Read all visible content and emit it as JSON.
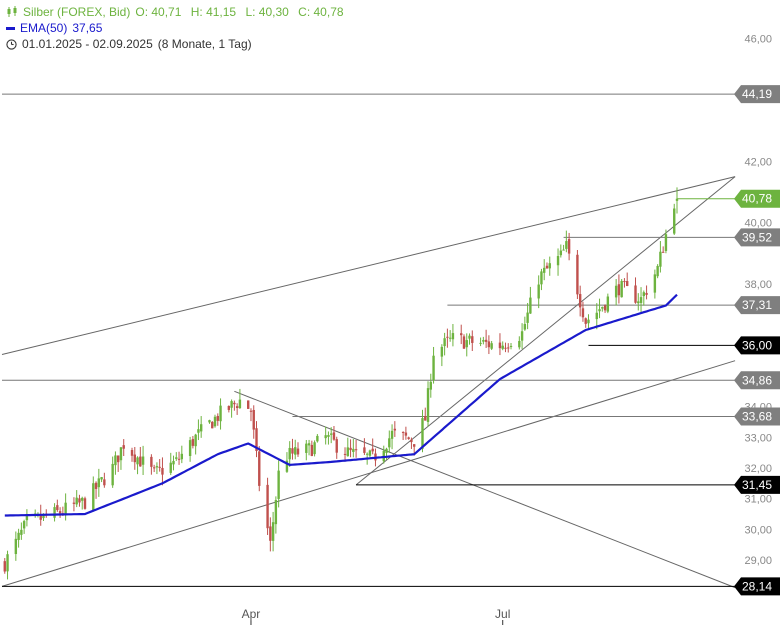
{
  "legend": {
    "instrument": "Silber (FOREX, Bid)",
    "open": "O: 40,71",
    "high": "H: 41,15",
    "low": "L: 40,30",
    "close": "C: 40,78",
    "ema_label": "EMA(50)",
    "ema_value": "37,65",
    "period": "01.01.2025 - 02.09.2025",
    "period_note": "(8 Monate, 1 Tag)"
  },
  "colors": {
    "up": "#6db33f",
    "down": "#c0504d",
    "ema": "#1a1acc",
    "line": "#555555",
    "badge_grey": "#7f7f7f",
    "badge_green": "#6db33f",
    "badge_black": "#000000"
  },
  "icons": {
    "legend_symbol": "candlestick-icon",
    "period_symbol": "clock-icon"
  },
  "chart_data": {
    "type": "candlestick",
    "x_range": [
      "2025-01-01",
      "2025-09-02"
    ],
    "ylim": [
      27.5,
      47.0
    ],
    "y_ticks": [
      29,
      30,
      31,
      32,
      33,
      34,
      36,
      38,
      40,
      42,
      46
    ],
    "y_tick_labels": [
      "29,00",
      "30,00",
      "31,00",
      "32,00",
      "33,00",
      "34,00",
      "36,00",
      "38,00",
      "40,00",
      "42,00",
      "46,00"
    ],
    "x_ticks": [
      {
        "date": "2025-04-01",
        "label": "Apr"
      },
      {
        "date": "2025-07-01",
        "label": "Jul"
      }
    ],
    "close_anchors": [
      [
        "2025-01-02",
        28.9
      ],
      [
        "2025-01-10",
        30.2
      ],
      [
        "2025-01-20",
        30.5
      ],
      [
        "2025-01-31",
        30.9
      ],
      [
        "2025-02-10",
        32.0
      ],
      [
        "2025-02-14",
        32.8
      ],
      [
        "2025-02-25",
        31.8
      ],
      [
        "2025-03-05",
        32.2
      ],
      [
        "2025-03-12",
        33.0
      ],
      [
        "2025-03-20",
        33.7
      ],
      [
        "2025-03-28",
        34.2
      ],
      [
        "2025-04-01",
        33.9
      ],
      [
        "2025-04-04",
        31.5
      ],
      [
        "2025-04-08",
        29.5
      ],
      [
        "2025-04-11",
        31.8
      ],
      [
        "2025-04-14",
        32.4
      ],
      [
        "2025-04-22",
        32.6
      ],
      [
        "2025-04-28",
        33.0
      ],
      [
        "2025-05-06",
        32.5
      ],
      [
        "2025-05-15",
        32.3
      ],
      [
        "2025-05-22",
        33.1
      ],
      [
        "2025-05-30",
        32.9
      ],
      [
        "2025-06-03",
        33.6
      ],
      [
        "2025-06-06",
        35.8
      ],
      [
        "2025-06-13",
        36.2
      ],
      [
        "2025-06-20",
        36.1
      ],
      [
        "2025-06-30",
        36.0
      ],
      [
        "2025-07-08",
        36.4
      ],
      [
        "2025-07-14",
        38.2
      ],
      [
        "2025-07-22",
        38.9
      ],
      [
        "2025-07-24",
        39.2
      ],
      [
        "2025-07-31",
        36.8
      ],
      [
        "2025-08-04",
        37.1
      ],
      [
        "2025-08-12",
        37.9
      ],
      [
        "2025-08-20",
        37.5
      ],
      [
        "2025-08-26",
        38.5
      ],
      [
        "2025-08-29",
        39.6
      ],
      [
        "2025-09-01",
        40.7
      ],
      [
        "2025-09-02",
        40.78
      ]
    ],
    "ema50_anchors": [
      [
        "2025-01-02",
        30.45
      ],
      [
        "2025-01-31",
        30.5
      ],
      [
        "2025-02-28",
        31.5
      ],
      [
        "2025-03-20",
        32.45
      ],
      [
        "2025-03-31",
        32.8
      ],
      [
        "2025-04-15",
        32.1
      ],
      [
        "2025-04-30",
        32.2
      ],
      [
        "2025-05-30",
        32.45
      ],
      [
        "2025-06-30",
        34.9
      ],
      [
        "2025-07-31",
        36.5
      ],
      [
        "2025-08-29",
        37.3
      ],
      [
        "2025-09-02",
        37.65
      ]
    ],
    "horizontal_levels": [
      {
        "value": 44.19,
        "label": "44,19",
        "from": "2025-01-01",
        "style": "grey"
      },
      {
        "value": 40.78,
        "label": "40,78",
        "from": "2025-09-02",
        "style": "green"
      },
      {
        "value": 39.52,
        "label": "39,52",
        "from": "2025-07-23",
        "style": "grey"
      },
      {
        "value": 37.31,
        "label": "37,31",
        "from": "2025-06-11",
        "style": "grey"
      },
      {
        "value": 36.0,
        "label": "36,00",
        "from": "2025-08-01",
        "style": "black"
      },
      {
        "value": 34.86,
        "label": "34,86",
        "from": "2025-01-01",
        "style": "grey"
      },
      {
        "value": 33.68,
        "label": "33,68",
        "from": "2025-04-16",
        "style": "grey"
      },
      {
        "value": 31.45,
        "label": "31,45",
        "from": "2025-05-09",
        "style": "black"
      },
      {
        "value": 28.14,
        "label": "28,14",
        "from": "2025-01-01",
        "style": "black"
      }
    ],
    "trend_lines": [
      {
        "from": [
          "2025-01-01",
          35.7
        ],
        "to": [
          "2025-09-23",
          41.5
        ]
      },
      {
        "from": [
          "2025-01-01",
          28.14
        ],
        "to": [
          "2025-09-23",
          35.5
        ]
      },
      {
        "from": [
          "2025-05-09",
          31.45
        ],
        "to": [
          "2025-09-23",
          41.5
        ]
      },
      {
        "from": [
          "2025-03-26",
          34.5
        ],
        "to": [
          "2025-09-23",
          28.1
        ]
      }
    ]
  }
}
